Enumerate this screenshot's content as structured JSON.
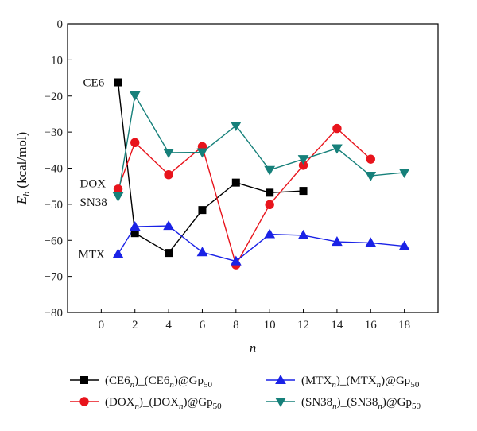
{
  "chart_data": {
    "type": "line",
    "xlabel": "n",
    "ylabel": "E_b (kcal/mol)",
    "xlim": [
      -2,
      20
    ],
    "ylim": [
      -80,
      0
    ],
    "xticks": [
      0,
      2,
      4,
      6,
      8,
      10,
      12,
      14,
      16,
      18
    ],
    "yticks": [
      0,
      -10,
      -20,
      -30,
      -40,
      -50,
      -60,
      -70,
      -80
    ],
    "grid": false,
    "legend_position": "bottom",
    "series": [
      {
        "name": "(CE6n)_(CE6n)@Gp50",
        "name_parts": {
          "a": "(CE6",
          "b": ")_(CE6",
          "c": ")@Gp"
        },
        "color": "#000000",
        "marker": "square",
        "x": [
          1,
          2,
          4,
          6,
          8,
          10,
          12
        ],
        "y": [
          -16.2,
          -58,
          -63.5,
          -51.6,
          -44,
          -46.8,
          -46.3
        ]
      },
      {
        "name": "(DOXn)_(DOXn)@Gp50",
        "name_parts": {
          "a": "(DOX",
          "b": ")_(DOX",
          "c": ")@Gp"
        },
        "color": "#e8141c",
        "marker": "circle",
        "x": [
          1,
          2,
          4,
          6,
          8,
          10,
          12,
          14,
          16
        ],
        "y": [
          -45.8,
          -32.9,
          -41.8,
          -34,
          -66.8,
          -50.1,
          -39.2,
          -29,
          -37.5
        ]
      },
      {
        "name": "(MTXn)_(MTXn)@Gp50",
        "name_parts": {
          "a": "(MTX",
          "b": ")_(MTX",
          "c": ")@Gp"
        },
        "color": "#1a22e6",
        "marker": "triangle-up",
        "x": [
          1,
          2,
          4,
          6,
          8,
          10,
          12,
          14,
          16,
          18
        ],
        "y": [
          -63.8,
          -56.2,
          -56,
          -63.3,
          -65.8,
          -58.3,
          -58.6,
          -60.4,
          -60.7,
          -61.6
        ]
      },
      {
        "name": "(SN38n)_(SN38n)@Gp50",
        "name_parts": {
          "a": "(SN38",
          "b": ")_(SN38",
          "c": ")@Gp"
        },
        "color": "#16807a",
        "marker": "triangle-down",
        "x": [
          1,
          2,
          4,
          6,
          8,
          10,
          12,
          14,
          16,
          18
        ],
        "y": [
          -47.8,
          -19.8,
          -35.7,
          -35.6,
          -28.2,
          -40.5,
          -37.5,
          -34.5,
          -42.1,
          -41.2
        ]
      }
    ],
    "annotations": [
      {
        "text": "CE6",
        "near_x": 1,
        "near_y": -16.2
      },
      {
        "text": "DOX",
        "near_x": 1,
        "near_y": -44.2
      },
      {
        "text": "SN38",
        "near_x": 1,
        "near_y": -49.4
      },
      {
        "text": "MTX",
        "near_x": 1,
        "near_y": -63.8
      }
    ]
  },
  "labels": {
    "sub_n": "n",
    "sub_gp": "50",
    "ylabel_main": "E",
    "ylabel_sub": "b",
    "ylabel_unit": " (kcal/mol)"
  }
}
